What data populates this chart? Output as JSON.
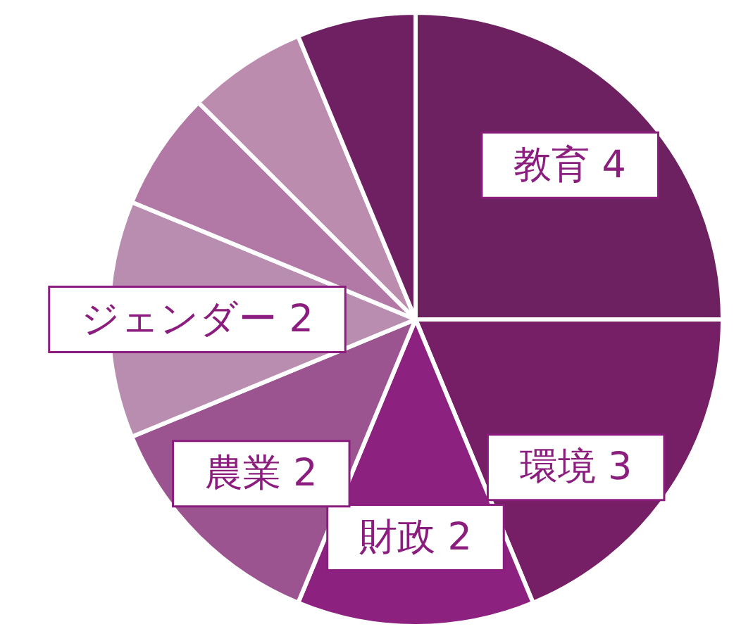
{
  "chart_data": {
    "type": "pie",
    "categories": [
      "教育",
      "環境",
      "財政",
      "農業",
      "ジェンダー",
      null,
      null,
      null
    ],
    "values": [
      4,
      3,
      2,
      2,
      2,
      1,
      1,
      1
    ],
    "value_labels": [
      "4",
      "3",
      "2",
      "2",
      "2",
      null,
      null,
      null
    ],
    "colors": [
      "#6e2160",
      "#761f66",
      "#8d2180",
      "#9c5490",
      "#b98daf",
      "#b279a6",
      "#bb8cae",
      "#6f2062"
    ]
  }
}
